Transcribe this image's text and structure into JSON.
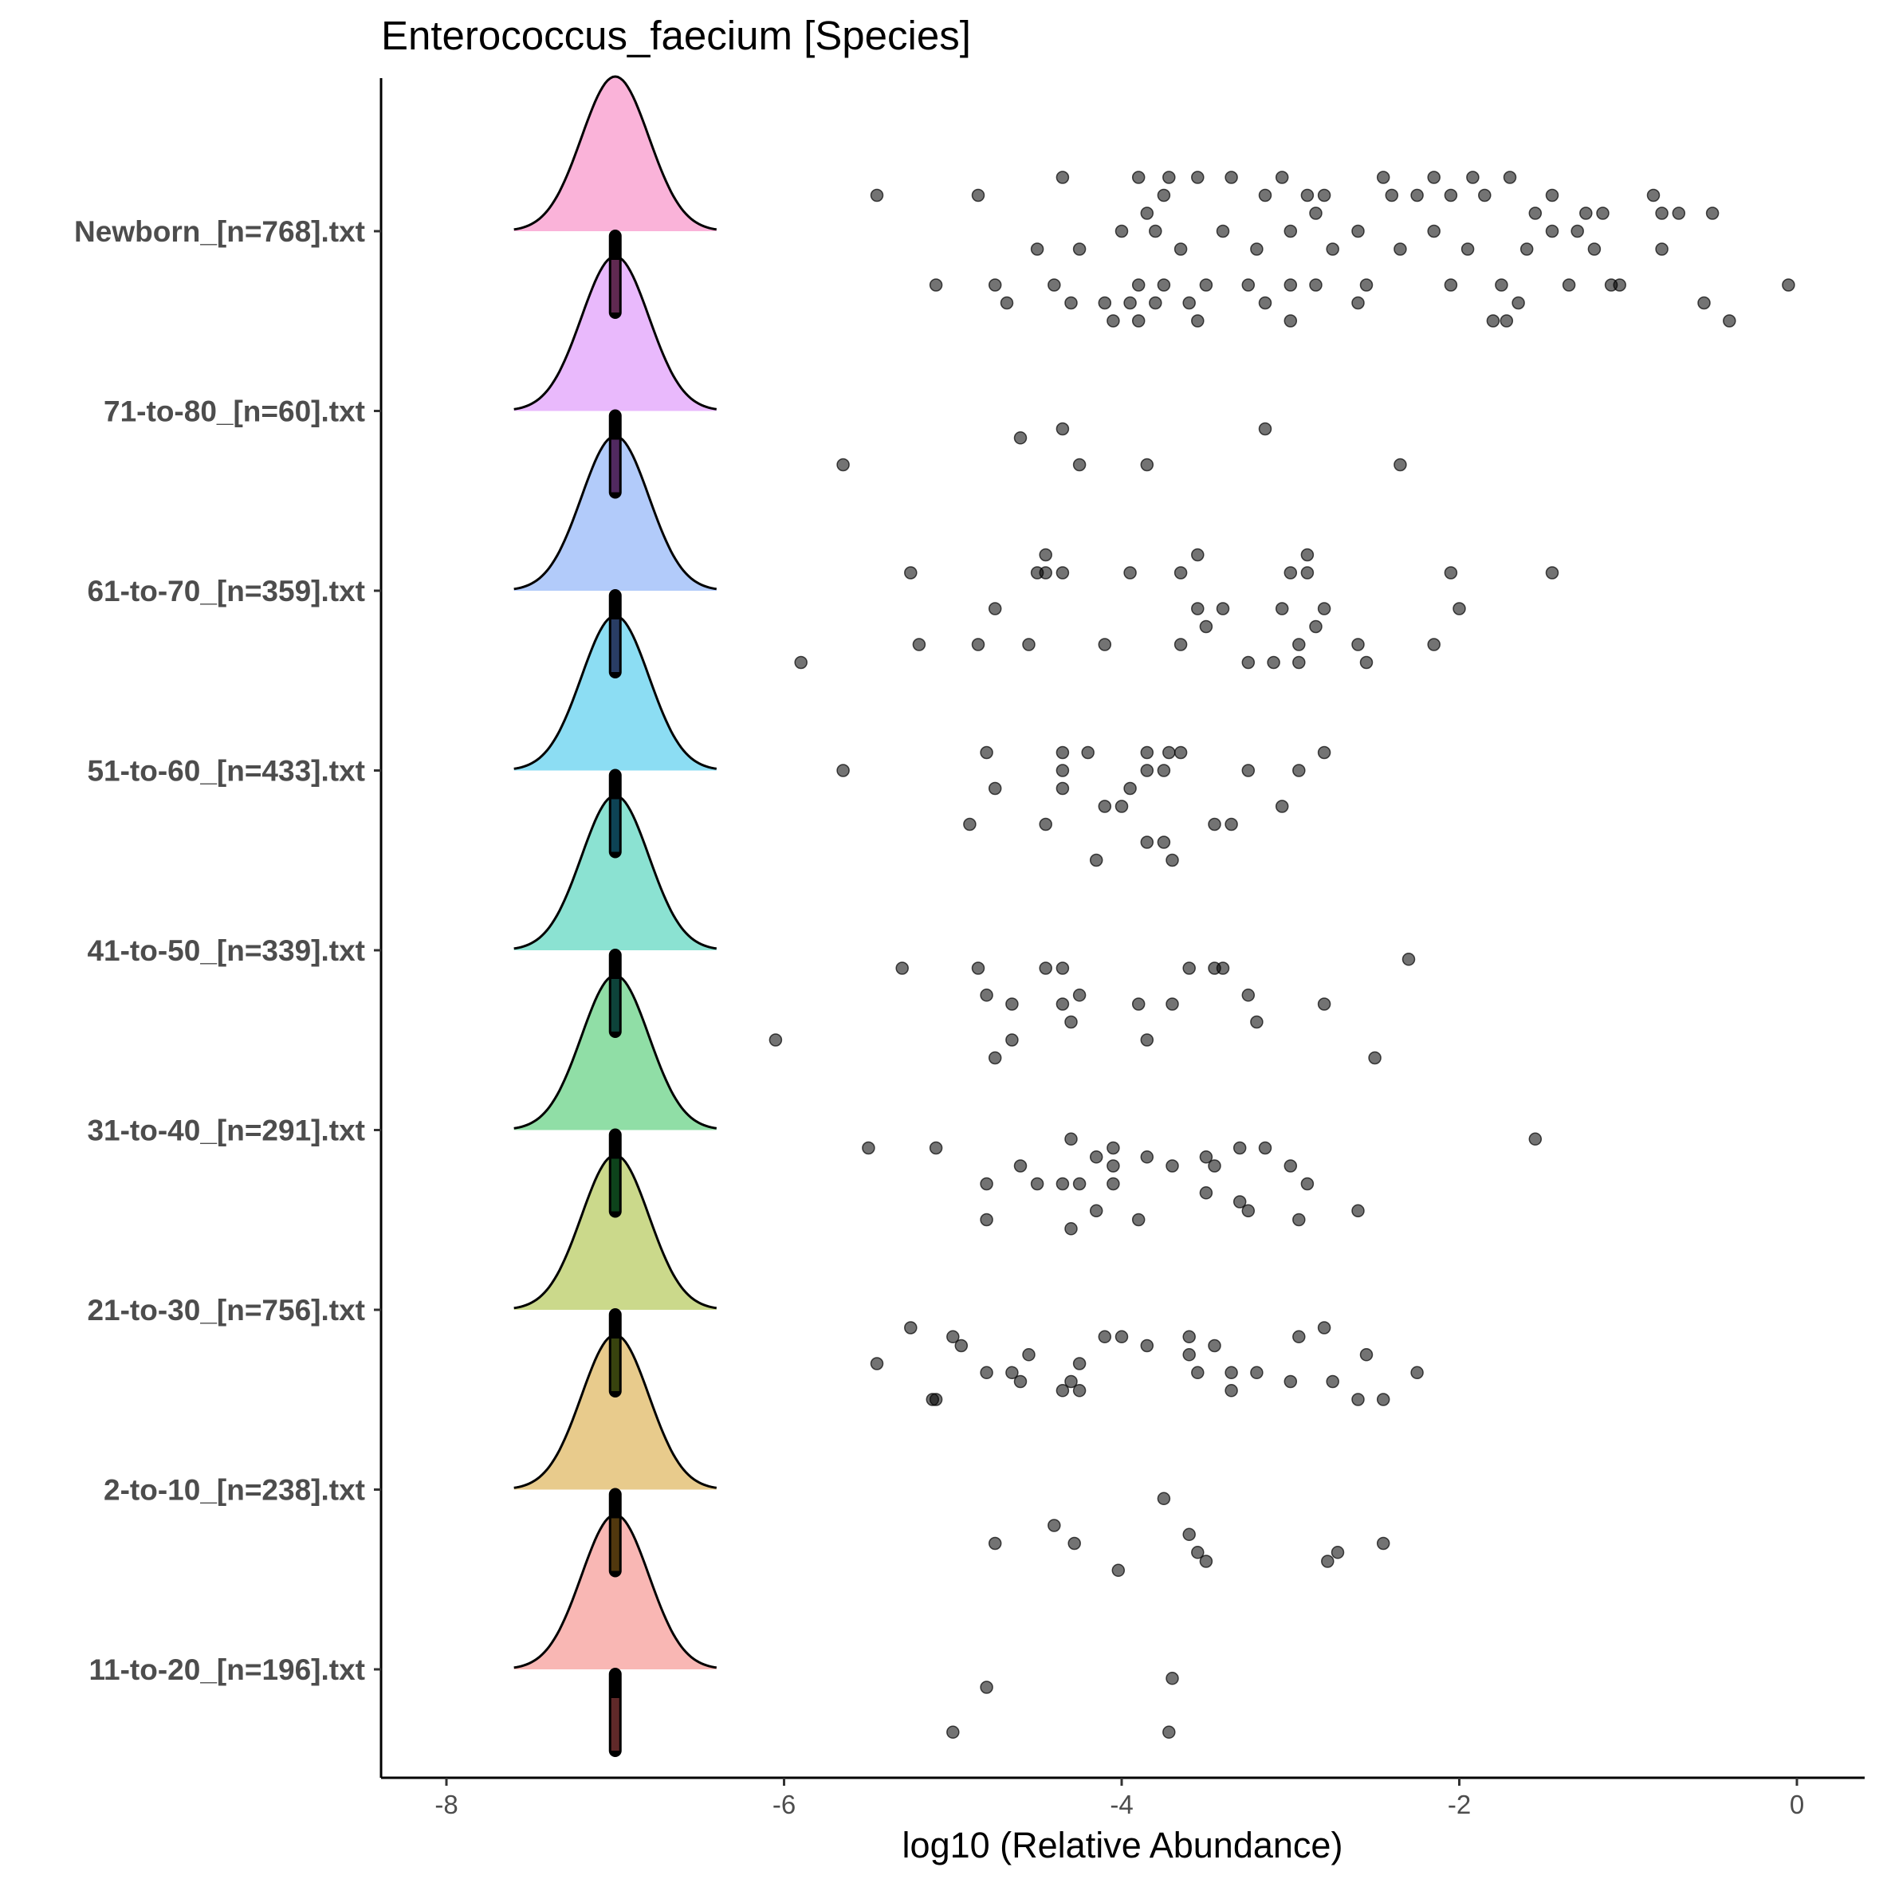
{
  "chart_data": {
    "type": "ridgeline-jitter",
    "title": "Enterococcus_faecium [Species]",
    "xlabel": "log10 (Relative Abundance)",
    "ylabel": "",
    "xlim": [
      -8.4,
      0.4
    ],
    "xticks": [
      -8,
      -6,
      -4,
      -2,
      0
    ],
    "xtick_labels": [
      "-8",
      "-6",
      "-4",
      "-2",
      "0"
    ],
    "grid": false,
    "legend": "none",
    "density_center": -7.0,
    "density_halfwidth": 0.6,
    "categories": [
      "Newborn_[n=768].txt",
      "71-to-80_[n=60].txt",
      "61-to-70_[n=359].txt",
      "51-to-60_[n=433].txt",
      "41-to-50_[n=339].txt",
      "31-to-40_[n=291].txt",
      "21-to-30_[n=756].txt",
      "2-to-10_[n=238].txt",
      "11-to-20_[n=196].txt"
    ],
    "colors": [
      "#F781BF",
      "#DA8BFA",
      "#7FA9F7",
      "#3FC6EB",
      "#3ECFB4",
      "#46C86A",
      "#A9BF3E",
      "#D9A940",
      "#F58782"
    ],
    "box_colors": [
      "#6A2E5A",
      "#5A2E6A",
      "#2E4470",
      "#0E4A5E",
      "#0E4A40",
      "#0E4A1E",
      "#3E4A10",
      "#5A3E10",
      "#6A2E2E"
    ],
    "series": [
      {
        "name": "Newborn_[n=768].txt",
        "points": [
          [
            -5.45,
            0.2
          ],
          [
            -4.85,
            0.2
          ],
          [
            -4.35,
            0.3
          ],
          [
            -3.9,
            0.3
          ],
          [
            -3.85,
            0.1
          ],
          [
            -3.75,
            0.2
          ],
          [
            -3.72,
            0.3
          ],
          [
            -3.55,
            0.3
          ],
          [
            -3.35,
            0.3
          ],
          [
            -3.15,
            0.2
          ],
          [
            -3.05,
            0.3
          ],
          [
            -2.9,
            0.2
          ],
          [
            -2.85,
            0.1
          ],
          [
            -2.8,
            0.2
          ],
          [
            -2.45,
            0.3
          ],
          [
            -2.4,
            0.2
          ],
          [
            -2.25,
            0.2
          ],
          [
            -2.15,
            0.3
          ],
          [
            -2.05,
            0.2
          ],
          [
            -1.92,
            0.3
          ],
          [
            -1.85,
            0.2
          ],
          [
            -1.7,
            0.3
          ],
          [
            -1.55,
            0.1
          ],
          [
            -1.45,
            0.2
          ],
          [
            -1.25,
            0.1
          ],
          [
            -1.15,
            0.1
          ],
          [
            -0.85,
            0.2
          ],
          [
            -0.8,
            0.1
          ],
          [
            -0.7,
            0.1
          ],
          [
            -0.5,
            0.1
          ],
          [
            -4.5,
            -0.1
          ],
          [
            -4.25,
            -0.1
          ],
          [
            -4.0,
            0.0
          ],
          [
            -3.8,
            0.0
          ],
          [
            -3.65,
            -0.1
          ],
          [
            -3.4,
            0.0
          ],
          [
            -3.2,
            -0.1
          ],
          [
            -3.0,
            0.0
          ],
          [
            -2.75,
            -0.1
          ],
          [
            -2.6,
            0.0
          ],
          [
            -2.35,
            -0.1
          ],
          [
            -2.15,
            0.0
          ],
          [
            -1.95,
            -0.1
          ],
          [
            -1.6,
            -0.1
          ],
          [
            -1.45,
            0.0
          ],
          [
            -1.3,
            0.0
          ],
          [
            -1.2,
            -0.1
          ],
          [
            -0.8,
            -0.1
          ],
          [
            -5.1,
            -0.3
          ],
          [
            -4.75,
            -0.3
          ],
          [
            -4.4,
            -0.3
          ],
          [
            -3.9,
            -0.3
          ],
          [
            -3.75,
            -0.3
          ],
          [
            -3.5,
            -0.3
          ],
          [
            -3.25,
            -0.3
          ],
          [
            -3.0,
            -0.3
          ],
          [
            -2.85,
            -0.3
          ],
          [
            -2.55,
            -0.3
          ],
          [
            -2.05,
            -0.3
          ],
          [
            -1.75,
            -0.3
          ],
          [
            -1.35,
            -0.3
          ],
          [
            -1.1,
            -0.3
          ],
          [
            -1.05,
            -0.3
          ],
          [
            -0.05,
            -0.3
          ],
          [
            -4.68,
            -0.4
          ],
          [
            -4.3,
            -0.4
          ],
          [
            -4.1,
            -0.4
          ],
          [
            -3.95,
            -0.4
          ],
          [
            -3.8,
            -0.4
          ],
          [
            -3.6,
            -0.4
          ],
          [
            -3.15,
            -0.4
          ],
          [
            -2.6,
            -0.4
          ],
          [
            -1.65,
            -0.4
          ],
          [
            -0.55,
            -0.4
          ],
          [
            -4.05,
            -0.5
          ],
          [
            -3.9,
            -0.5
          ],
          [
            -3.55,
            -0.5
          ],
          [
            -3.0,
            -0.5
          ],
          [
            -1.8,
            -0.5
          ],
          [
            -1.72,
            -0.5
          ],
          [
            -0.4,
            -0.5
          ]
        ]
      },
      {
        "name": "71-to-80_[n=60].txt",
        "points": [
          [
            -4.6,
            -0.15
          ],
          [
            -4.35,
            -0.1
          ],
          [
            -3.15,
            -0.1
          ],
          [
            -5.65,
            -0.3
          ],
          [
            -4.25,
            -0.3
          ],
          [
            -3.85,
            -0.3
          ],
          [
            -2.35,
            -0.3
          ]
        ]
      },
      {
        "name": "61-to-70_[n=359].txt",
        "points": [
          [
            -5.25,
            0.1
          ],
          [
            -4.5,
            0.1
          ],
          [
            -4.45,
            0.1
          ],
          [
            -4.35,
            0.1
          ],
          [
            -3.95,
            0.1
          ],
          [
            -3.65,
            0.1
          ],
          [
            -3.0,
            0.1
          ],
          [
            -2.9,
            0.1
          ],
          [
            -2.05,
            0.1
          ],
          [
            -1.45,
            0.1
          ],
          [
            -4.45,
            0.2
          ],
          [
            -3.55,
            0.2
          ],
          [
            -2.9,
            0.2
          ],
          [
            -4.75,
            -0.1
          ],
          [
            -3.55,
            -0.1
          ],
          [
            -3.4,
            -0.1
          ],
          [
            -3.05,
            -0.1
          ],
          [
            -2.8,
            -0.1
          ],
          [
            -2.0,
            -0.1
          ],
          [
            -5.2,
            -0.3
          ],
          [
            -4.85,
            -0.3
          ],
          [
            -4.55,
            -0.3
          ],
          [
            -4.1,
            -0.3
          ],
          [
            -3.65,
            -0.3
          ],
          [
            -2.95,
            -0.3
          ],
          [
            -2.6,
            -0.3
          ],
          [
            -2.15,
            -0.3
          ],
          [
            -5.9,
            -0.4
          ],
          [
            -3.1,
            -0.4
          ],
          [
            -2.95,
            -0.4
          ],
          [
            -2.55,
            -0.4
          ],
          [
            -2.85,
            -0.2
          ],
          [
            -3.5,
            -0.2
          ],
          [
            -3.25,
            -0.4
          ]
        ]
      },
      {
        "name": "51-to-60_[n=433].txt",
        "points": [
          [
            -4.8,
            0.1
          ],
          [
            -4.35,
            0.1
          ],
          [
            -4.2,
            0.1
          ],
          [
            -3.85,
            0.1
          ],
          [
            -3.72,
            0.1
          ],
          [
            -3.65,
            0.1
          ],
          [
            -2.8,
            0.1
          ],
          [
            -5.65,
            0.0
          ],
          [
            -4.35,
            0.0
          ],
          [
            -3.85,
            0.0
          ],
          [
            -3.75,
            0.0
          ],
          [
            -3.25,
            0.0
          ],
          [
            -2.95,
            0.0
          ],
          [
            -4.75,
            -0.1
          ],
          [
            -4.35,
            -0.1
          ],
          [
            -4.0,
            -0.2
          ],
          [
            -3.95,
            -0.1
          ],
          [
            -3.05,
            -0.2
          ],
          [
            -4.9,
            -0.3
          ],
          [
            -4.45,
            -0.3
          ],
          [
            -3.45,
            -0.3
          ],
          [
            -3.35,
            -0.3
          ],
          [
            -3.85,
            -0.4
          ],
          [
            -3.75,
            -0.4
          ],
          [
            -4.15,
            -0.5
          ],
          [
            -3.7,
            -0.5
          ],
          [
            -4.1,
            -0.2
          ]
        ]
      },
      {
        "name": "41-to-50_[n=339].txt",
        "points": [
          [
            -5.3,
            -0.1
          ],
          [
            -4.85,
            -0.1
          ],
          [
            -4.45,
            -0.1
          ],
          [
            -4.35,
            -0.1
          ],
          [
            -3.6,
            -0.1
          ],
          [
            -3.4,
            -0.1
          ],
          [
            -3.45,
            -0.1
          ],
          [
            -2.3,
            -0.05
          ],
          [
            -4.8,
            -0.25
          ],
          [
            -4.25,
            -0.25
          ],
          [
            -3.25,
            -0.25
          ],
          [
            -4.65,
            -0.3
          ],
          [
            -4.35,
            -0.3
          ],
          [
            -3.9,
            -0.3
          ],
          [
            -3.7,
            -0.3
          ],
          [
            -2.8,
            -0.3
          ],
          [
            -4.3,
            -0.4
          ],
          [
            -3.2,
            -0.4
          ],
          [
            -6.05,
            -0.5
          ],
          [
            -4.65,
            -0.5
          ],
          [
            -3.85,
            -0.5
          ],
          [
            -4.75,
            -0.6
          ],
          [
            -2.5,
            -0.6
          ]
        ]
      },
      {
        "name": "31-to-40_[n=291].txt",
        "points": [
          [
            -4.3,
            -0.05
          ],
          [
            -4.05,
            -0.1
          ],
          [
            -3.15,
            -0.1
          ],
          [
            -1.55,
            -0.05
          ],
          [
            -5.5,
            -0.1
          ],
          [
            -5.1,
            -0.1
          ],
          [
            -4.15,
            -0.15
          ],
          [
            -3.85,
            -0.15
          ],
          [
            -3.5,
            -0.15
          ],
          [
            -3.3,
            -0.1
          ],
          [
            -3.0,
            -0.2
          ],
          [
            -4.6,
            -0.2
          ],
          [
            -4.25,
            -0.3
          ],
          [
            -4.05,
            -0.2
          ],
          [
            -3.7,
            -0.2
          ],
          [
            -3.45,
            -0.2
          ],
          [
            -4.8,
            -0.3
          ],
          [
            -4.5,
            -0.3
          ],
          [
            -4.35,
            -0.3
          ],
          [
            -4.05,
            -0.3
          ],
          [
            -2.9,
            -0.3
          ],
          [
            -3.5,
            -0.35
          ],
          [
            -3.3,
            -0.4
          ],
          [
            -2.6,
            -0.45
          ],
          [
            -4.15,
            -0.45
          ],
          [
            -3.9,
            -0.5
          ],
          [
            -2.95,
            -0.5
          ],
          [
            -3.25,
            -0.45
          ],
          [
            -4.8,
            -0.5
          ],
          [
            -4.3,
            -0.55
          ]
        ]
      },
      {
        "name": "21-to-30_[n=756].txt",
        "points": [
          [
            -5.25,
            -0.1
          ],
          [
            -2.8,
            -0.1
          ],
          [
            -4.1,
            -0.15
          ],
          [
            -4.0,
            -0.15
          ],
          [
            -3.6,
            -0.15
          ],
          [
            -2.95,
            -0.15
          ],
          [
            -5.0,
            -0.15
          ],
          [
            -4.95,
            -0.2
          ],
          [
            -3.85,
            -0.2
          ],
          [
            -3.45,
            -0.2
          ],
          [
            -4.55,
            -0.25
          ],
          [
            -3.6,
            -0.25
          ],
          [
            -2.55,
            -0.25
          ],
          [
            -5.45,
            -0.3
          ],
          [
            -4.25,
            -0.3
          ],
          [
            -3.55,
            -0.35
          ],
          [
            -3.35,
            -0.35
          ],
          [
            -3.2,
            -0.35
          ],
          [
            -2.25,
            -0.35
          ],
          [
            -4.8,
            -0.35
          ],
          [
            -4.65,
            -0.35
          ],
          [
            -4.6,
            -0.4
          ],
          [
            -4.3,
            -0.4
          ],
          [
            -3.0,
            -0.4
          ],
          [
            -2.75,
            -0.4
          ],
          [
            -3.35,
            -0.45
          ],
          [
            -4.35,
            -0.45
          ],
          [
            -4.25,
            -0.45
          ],
          [
            -5.1,
            -0.5
          ],
          [
            -5.12,
            -0.5
          ],
          [
            -2.6,
            -0.5
          ],
          [
            -2.45,
            -0.5
          ]
        ]
      },
      {
        "name": "2-to-10_[n=238].txt",
        "points": [
          [
            -3.75,
            -0.05
          ],
          [
            -4.4,
            -0.2
          ],
          [
            -3.6,
            -0.25
          ],
          [
            -4.75,
            -0.3
          ],
          [
            -4.28,
            -0.3
          ],
          [
            -2.45,
            -0.3
          ],
          [
            -2.72,
            -0.35
          ],
          [
            -3.55,
            -0.35
          ],
          [
            -2.78,
            -0.4
          ],
          [
            -3.5,
            -0.4
          ],
          [
            -4.02,
            -0.45
          ]
        ]
      },
      {
        "name": "11-to-20_[n=196].txt",
        "points": [
          [
            -3.7,
            -0.05
          ],
          [
            -4.8,
            -0.1
          ],
          [
            -5.0,
            -0.35
          ],
          [
            -3.72,
            -0.35
          ]
        ]
      }
    ]
  }
}
